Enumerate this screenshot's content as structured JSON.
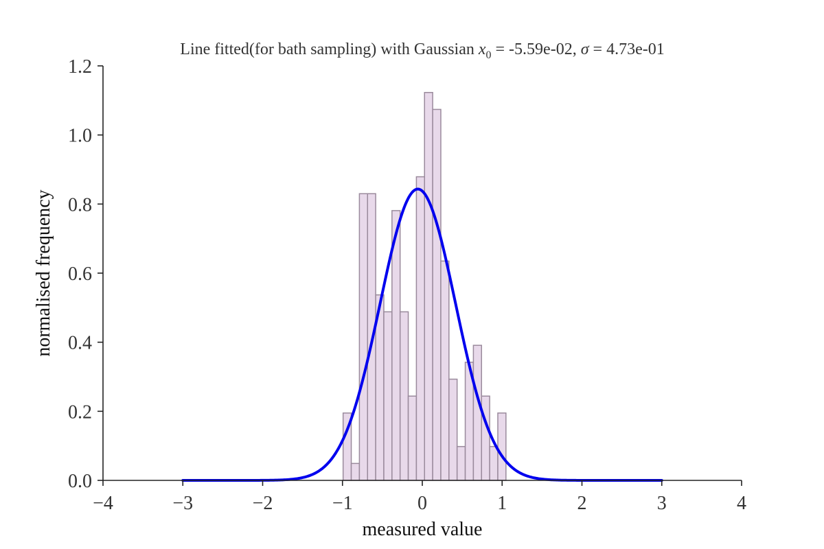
{
  "chart_data": {
    "type": "bar",
    "title": {
      "prefix": "Line fitted(for bath sampling) with Gaussian ",
      "x0_symbol": "x",
      "x0_subscript": "0",
      "x0_value": " = -5.59e-02, ",
      "sigma_symbol": "σ",
      "sigma_value": " = 4.73e-01"
    },
    "xlabel": "measured value",
    "ylabel": "normalised frequency",
    "xlim": [
      -4,
      4
    ],
    "ylim": [
      0,
      1.2
    ],
    "xticks": [
      -4,
      -3,
      -2,
      -1,
      0,
      1,
      2,
      3,
      4
    ],
    "xtick_labels": [
      "−4",
      "−3",
      "−2",
      "−1",
      "0",
      "1",
      "2",
      "3",
      "4"
    ],
    "yticks": [
      0.0,
      0.2,
      0.4,
      0.6,
      0.8,
      1.0,
      1.2
    ],
    "ytick_labels": [
      "0.0",
      "0.2",
      "0.4",
      "0.6",
      "0.8",
      "1.0",
      "1.2"
    ],
    "grid": false,
    "histogram": {
      "bin_width": 0.102,
      "bin_starts": [
        -0.992,
        -0.89,
        -0.788,
        -0.686,
        -0.584,
        -0.482,
        -0.38,
        -0.278,
        -0.176,
        -0.074,
        0.028,
        0.13,
        0.232,
        0.334,
        0.436,
        0.538,
        0.64,
        0.742,
        0.844,
        0.946
      ],
      "values": [
        0.195,
        0.049,
        0.83,
        0.83,
        0.537,
        0.488,
        0.781,
        0.488,
        0.244,
        0.879,
        1.123,
        1.074,
        0.635,
        0.293,
        0.098,
        0.342,
        0.391,
        0.244,
        0.098,
        0.195
      ],
      "fill_color": "#e8d9ea",
      "edge_color": "#9a8a9c"
    },
    "fit": {
      "type": "gaussian",
      "x0": -0.0559,
      "sigma": 0.473,
      "x_range": [
        -3,
        3
      ],
      "color": "#0000ee"
    }
  }
}
